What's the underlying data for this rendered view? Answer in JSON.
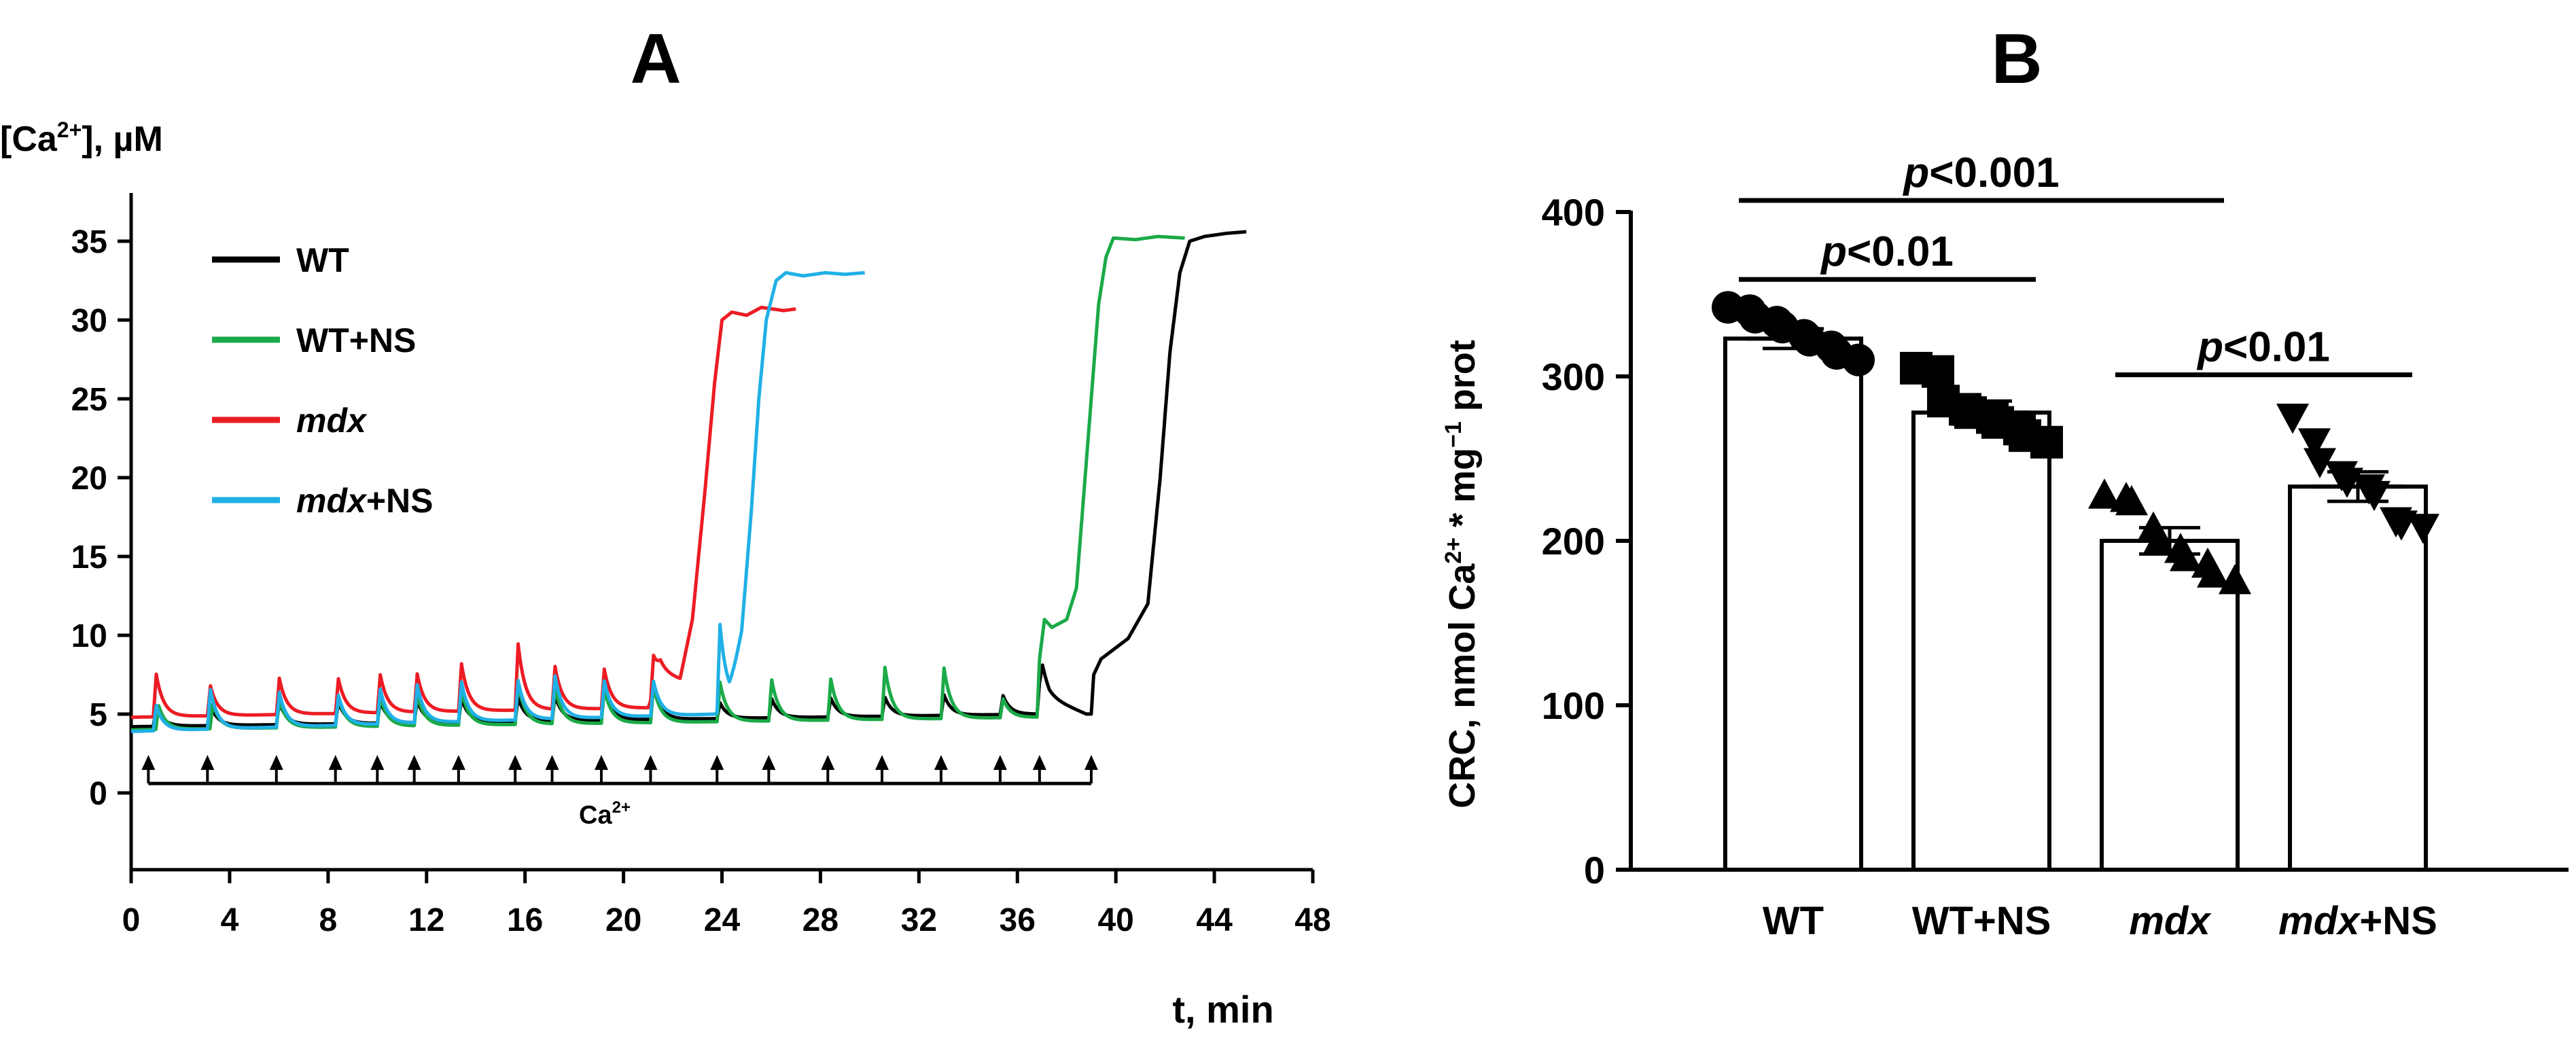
{
  "figure": {
    "panel_a_label": "A",
    "panel_b_label": "B"
  },
  "chart_data": [
    {
      "id": "A",
      "type": "line",
      "title": "A",
      "ylabel": "[Ca2+], µM",
      "ylabel_parts": [
        "[Ca",
        "2+",
        "], µM"
      ],
      "xlabel": "t, min",
      "xlim": [
        0,
        48
      ],
      "ylim": [
        -5,
        37.5
      ],
      "xticks": [
        0,
        4,
        8,
        12,
        16,
        20,
        24,
        28,
        32,
        36,
        40,
        44,
        48
      ],
      "xtick_labels": [
        "0",
        "4",
        "8",
        "12",
        "16",
        "20",
        "24",
        "28",
        "32",
        "36",
        "40",
        "44",
        "48"
      ],
      "yticks": [
        0,
        5,
        10,
        15,
        20,
        25,
        30,
        35
      ],
      "ytick_labels": [
        "0",
        "5",
        "10",
        "15",
        "20",
        "25",
        "30",
        "35"
      ],
      "legend_position": "top-left",
      "additions": {
        "label": "Ca2+",
        "label_parts": [
          "Ca",
          "2+"
        ],
        "x_start": 0.7,
        "x_end": 39.0,
        "y": 0.6,
        "times": [
          0.7,
          3.1,
          5.9,
          8.3,
          10.0,
          11.5,
          13.3,
          15.6,
          17.1,
          19.1,
          21.1,
          23.8,
          25.9,
          28.3,
          30.5,
          32.9,
          35.3,
          36.9,
          39.0
        ]
      },
      "series": [
        {
          "name": "WT",
          "italic_part": "",
          "plain_part": "WT",
          "color": "#000000",
          "baseline": 4.3,
          "spikes": [
            [
              0.9,
              1.2
            ],
            [
              3.1,
              1.3
            ],
            [
              5.9,
              1.4
            ],
            [
              8.3,
              1.4
            ],
            [
              10.0,
              1.4
            ],
            [
              11.5,
              1.4
            ],
            [
              13.3,
              1.5
            ],
            [
              15.6,
              1.5
            ],
            [
              17.1,
              1.6
            ],
            [
              19.1,
              2.0
            ],
            [
              21.1,
              2.2
            ],
            [
              23.8,
              1.0
            ],
            [
              25.9,
              1.2
            ],
            [
              28.3,
              1.2
            ],
            [
              30.5,
              1.2
            ],
            [
              32.9,
              1.3
            ],
            [
              35.3,
              1.2
            ],
            [
              36.9,
              1.4
            ]
          ],
          "points": [
            [
              0,
              4.2
            ],
            [
              36.8,
              5.0
            ],
            [
              36.9,
              7.0
            ],
            [
              37.3,
              6.0
            ],
            [
              38.8,
              5.0
            ],
            [
              39.0,
              5.0
            ],
            [
              39.1,
              7.5
            ],
            [
              39.4,
              8.5
            ],
            [
              40.5,
              9.8
            ],
            [
              41.3,
              12
            ],
            [
              41.8,
              20
            ],
            [
              42.2,
              28
            ],
            [
              42.6,
              33
            ],
            [
              43.0,
              35
            ],
            [
              43.6,
              35.3
            ],
            [
              44.5,
              35.5
            ],
            [
              45.3,
              35.6
            ]
          ]
        },
        {
          "name": "WT+NS",
          "italic_part": "",
          "plain_part": "WT+NS",
          "color": "#1aaa48",
          "baseline": 3.8,
          "spikes": [
            [
              1.0,
              1.5
            ],
            [
              3.2,
              1.6
            ],
            [
              5.9,
              1.8
            ],
            [
              8.3,
              1.9
            ],
            [
              10.0,
              1.9
            ],
            [
              11.5,
              2.0
            ],
            [
              13.3,
              2.2
            ],
            [
              15.6,
              2.6
            ],
            [
              17.1,
              2.3
            ],
            [
              19.1,
              2.2
            ],
            [
              21.1,
              2.3
            ],
            [
              23.8,
              2.5
            ],
            [
              25.9,
              2.6
            ],
            [
              28.3,
              2.6
            ],
            [
              30.5,
              3.3
            ],
            [
              32.9,
              3.2
            ],
            [
              35.3,
              1.2
            ]
          ],
          "points": [
            [
              0,
              4.0
            ],
            [
              36.8,
              4.8
            ],
            [
              36.9,
              8.5
            ],
            [
              37.1,
              11
            ],
            [
              37.4,
              10.5
            ],
            [
              38.0,
              11
            ],
            [
              38.4,
              13
            ],
            [
              38.9,
              23
            ],
            [
              39.3,
              31
            ],
            [
              39.6,
              34
            ],
            [
              39.9,
              35.2
            ],
            [
              40.8,
              35.1
            ],
            [
              41.7,
              35.3
            ],
            [
              42.8,
              35.2
            ]
          ]
        },
        {
          "name": "mdx",
          "italic_part": "mdx",
          "plain_part": "",
          "color": "#ec1c24",
          "baseline": 4.7,
          "spikes": [
            [
              0.9,
              2.7
            ],
            [
              3.1,
              1.9
            ],
            [
              5.9,
              2.3
            ],
            [
              8.3,
              2.2
            ],
            [
              10.0,
              2.4
            ],
            [
              11.5,
              2.4
            ],
            [
              13.3,
              3.0
            ],
            [
              15.6,
              4.2
            ],
            [
              17.1,
              2.7
            ],
            [
              19.1,
              2.5
            ],
            [
              21.1,
              2.4
            ]
          ],
          "points": [
            [
              0,
              4.8
            ],
            [
              21.0,
              5.4
            ],
            [
              21.5,
              7.5
            ],
            [
              22.3,
              7.2
            ],
            [
              22.8,
              11
            ],
            [
              23.3,
              19
            ],
            [
              23.7,
              26
            ],
            [
              24.0,
              30
            ],
            [
              24.4,
              30.5
            ],
            [
              25.0,
              30.3
            ],
            [
              25.6,
              30.8
            ],
            [
              26.5,
              30.6
            ],
            [
              27.0,
              30.7
            ]
          ]
        },
        {
          "name": "mdx+NS",
          "italic_part": "mdx",
          "plain_part": "+NS",
          "color": "#20b0e6",
          "baseline": 3.7,
          "spikes": [
            [
              0.9,
              1.6
            ],
            [
              3.1,
              2.5
            ],
            [
              5.9,
              2.2
            ],
            [
              8.3,
              1.9
            ],
            [
              10.0,
              2.2
            ],
            [
              11.5,
              2.4
            ],
            [
              13.3,
              2.5
            ],
            [
              15.6,
              2.5
            ],
            [
              17.1,
              2.7
            ],
            [
              19.1,
              2.3
            ],
            [
              21.1,
              2.2
            ],
            [
              23.8,
              5.5
            ]
          ],
          "points": [
            [
              0,
              3.9
            ],
            [
              23.7,
              5.0
            ],
            [
              24.3,
              5.5
            ],
            [
              24.8,
              10
            ],
            [
              25.2,
              18
            ],
            [
              25.5,
              25
            ],
            [
              25.8,
              30
            ],
            [
              26.2,
              32.5
            ],
            [
              26.6,
              33
            ],
            [
              27.3,
              32.8
            ],
            [
              28.2,
              33
            ],
            [
              29.0,
              32.9
            ],
            [
              29.8,
              33.0
            ]
          ]
        }
      ]
    },
    {
      "id": "B",
      "type": "bar",
      "title": "B",
      "ylabel": "CRC, nmol Ca2+ * mg−1 prot",
      "ylabel_parts": [
        "CRC, nmol Ca",
        "2+",
        " * mg",
        "−1",
        " prot"
      ],
      "ylim": [
        0,
        400
      ],
      "yticks": [
        0,
        100,
        200,
        300,
        400
      ],
      "ytick_labels": [
        "0",
        "100",
        "200",
        "300",
        "400"
      ],
      "categories": [
        "WT",
        "WT+NS",
        "mdx",
        "mdx+NS"
      ],
      "category_italic": [
        "",
        "",
        "mdx",
        "mdx"
      ],
      "category_plain": [
        "WT",
        "WT+NS",
        "",
        "+NS"
      ],
      "values": [
        323,
        278,
        200,
        233
      ],
      "sem": [
        6,
        7,
        8,
        9
      ],
      "markers": [
        "circle",
        "square",
        "triangle-up",
        "triangle-down"
      ],
      "points": [
        [
          342,
          340,
          336,
          333,
          330,
          325,
          322,
          318,
          314,
          310
        ],
        [
          305,
          303,
          285,
          280,
          278,
          275,
          272,
          268,
          264,
          260
        ],
        [
          228,
          226,
          224,
          208,
          200,
          195,
          190,
          186,
          180,
          176
        ],
        [
          275,
          260,
          248,
          240,
          236,
          232,
          228,
          212,
          210,
          208
        ]
      ],
      "significance": [
        {
          "from": 0,
          "to": 2,
          "label": "p<0.001",
          "p": "p",
          "rest": "<0.001",
          "y": 407
        },
        {
          "from": 0,
          "to": 1,
          "label": "p<0.01",
          "p": "p",
          "rest": "<0.01",
          "y": 359
        },
        {
          "from": 2,
          "to": 3,
          "label": "p<0.01",
          "p": "p",
          "rest": "<0.01",
          "y": 301
        }
      ]
    }
  ]
}
